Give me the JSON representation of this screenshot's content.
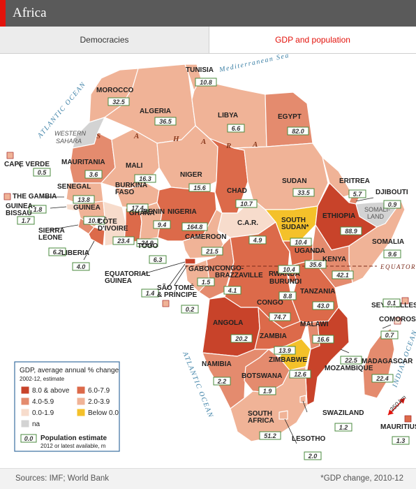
{
  "header": {
    "title": "Africa"
  },
  "tabs": [
    {
      "label": "Democracies"
    },
    {
      "label": "GDP and population"
    }
  ],
  "colors": {
    "c8": "#c8432a",
    "c6": "#dc6a4a",
    "c4": "#e48b6e",
    "c2": "#f0b397",
    "c0": "#f7dccc",
    "neg": "#f4c12a",
    "na": "#d3d3d3",
    "sea": "#dfeef5"
  },
  "countries": [
    {
      "name": "TUNISIA",
      "pop": "10.8"
    },
    {
      "name": "MOROCCO",
      "pop": "32.5"
    },
    {
      "name": "ALGERIA",
      "pop": "36.5"
    },
    {
      "name": "LIBYA",
      "pop": "6.6"
    },
    {
      "name": "EGYPT",
      "pop": "82.0"
    },
    {
      "name": "MAURITANIA",
      "pop": "3.6"
    },
    {
      "name": "MALI",
      "pop": "16.3"
    },
    {
      "name": "NIGER",
      "pop": "15.6"
    },
    {
      "name": "CHAD",
      "pop": "10.7"
    },
    {
      "name": "SUDAN",
      "pop": "33.5"
    },
    {
      "name": "ERITREA",
      "pop": "5.7"
    },
    {
      "name": "DJIBOUTI",
      "pop": "0.9"
    },
    {
      "name": "CAPE VERDE",
      "pop": "0.5"
    },
    {
      "name": "SENEGAL",
      "pop": "13.8"
    },
    {
      "name": "THE GAMBIA",
      "pop": "1.8"
    },
    {
      "name": "GUINEA",
      "pop": "10.9"
    },
    {
      "name": "GUINEA-BISSAU",
      "pop": "1.7"
    },
    {
      "name": "SIERRA LEONE",
      "pop": "6.2"
    },
    {
      "name": "LIBERIA",
      "pop": "4.0"
    },
    {
      "name": "BURKINA FASO",
      "pop": "17.4"
    },
    {
      "name": "CÔTE D'IVOIRE",
      "pop": "23.4"
    },
    {
      "name": "GHANA",
      "pop": "24.9"
    },
    {
      "name": "BENIN",
      "pop": "9.4"
    },
    {
      "name": "TOGO",
      "pop": "6.3"
    },
    {
      "name": "NIGERIA",
      "pop": "164.8"
    },
    {
      "name": "C.A.R.",
      "pop": "4.9"
    },
    {
      "name": "SOUTH SUDAN*",
      "pop": "10.4"
    },
    {
      "name": "ETHIOPIA",
      "pop": "88.9"
    },
    {
      "name": "SOMALIA",
      "pop": "9.6"
    },
    {
      "name": "CAMEROON",
      "pop": "21.5"
    },
    {
      "name": "EQUATORIAL GUINEA",
      "pop": "1.4"
    },
    {
      "name": "SÃO TOMÉ & PRÍNCIPE",
      "pop": "0.2"
    },
    {
      "name": "GABON",
      "pop": "1.5"
    },
    {
      "name": "CONGO-BRAZZAVILLE",
      "pop": "4.1"
    },
    {
      "name": "UGANDA",
      "pop": "35.6"
    },
    {
      "name": "KENYA",
      "pop": "42.1"
    },
    {
      "name": "RWANDA",
      "pop": "10.4"
    },
    {
      "name": "BURUNDI",
      "pop": "8.8"
    },
    {
      "name": "CONGO",
      "pop": "74.7"
    },
    {
      "name": "TANZANIA",
      "pop": "43.0"
    },
    {
      "name": "SEYCHELLES",
      "pop": "0.1"
    },
    {
      "name": "ANGOLA",
      "pop": "20.2"
    },
    {
      "name": "MALAWI",
      "pop": "16.6"
    },
    {
      "name": "ZAMBIA",
      "pop": "13.9"
    },
    {
      "name": "COMOROS",
      "pop": "0.7"
    },
    {
      "name": "MOZAMBIQUE",
      "pop": "22.5"
    },
    {
      "name": "ZIMBABWE",
      "pop": "12.6"
    },
    {
      "name": "NAMIBIA",
      "pop": "2.2"
    },
    {
      "name": "BOTSWANA",
      "pop": "1.9"
    },
    {
      "name": "MADAGASCAR",
      "pop": "22.4"
    },
    {
      "name": "SWAZILAND",
      "pop": "1.2"
    },
    {
      "name": "SOUTH AFRICA",
      "pop": "51.2"
    },
    {
      "name": "LESOTHO",
      "pop": "2.0"
    },
    {
      "name": "MAURITIUS",
      "pop": "1.3"
    }
  ],
  "regions": {
    "western_sahara": "WESTERN SAHARA",
    "somaliland": "SOMALI-LAND"
  },
  "seas": {
    "mediterranean": "Mediterranean Sea",
    "atlantic_n": "ATLANTIC OCEAN",
    "atlantic_s": "ATLANTIC OCEAN",
    "indian": "INDIAN OCEAN",
    "equator": "EQUATOR"
  },
  "sahara_letters": [
    "S",
    "A",
    "H",
    "A",
    "R",
    "A"
  ],
  "scale": {
    "value": "350",
    "unit": "km"
  },
  "legend": {
    "title": "GDP, average annual % change",
    "subtitle": "2002-12, estimate",
    "items": [
      {
        "label": "8.0 & above",
        "color": "#c8432a"
      },
      {
        "label": "6.0-7.9",
        "color": "#dc6a4a"
      },
      {
        "label": "4.0-5.9",
        "color": "#e48b6e"
      },
      {
        "label": "2.0-3.9",
        "color": "#f0b397"
      },
      {
        "label": "0.0-1.9",
        "color": "#f7dccc"
      },
      {
        "label": "Below 0.0",
        "color": "#f4c12a"
      },
      {
        "label": "na",
        "color": "#d3d3d3"
      }
    ],
    "pop_sample": "0.0",
    "pop_title": "Population estimate",
    "pop_subtitle": "2012 or latest available, m"
  },
  "footer": {
    "sources": "Sources: IMF; World Bank",
    "note": "*GDP change, 2010-12"
  }
}
